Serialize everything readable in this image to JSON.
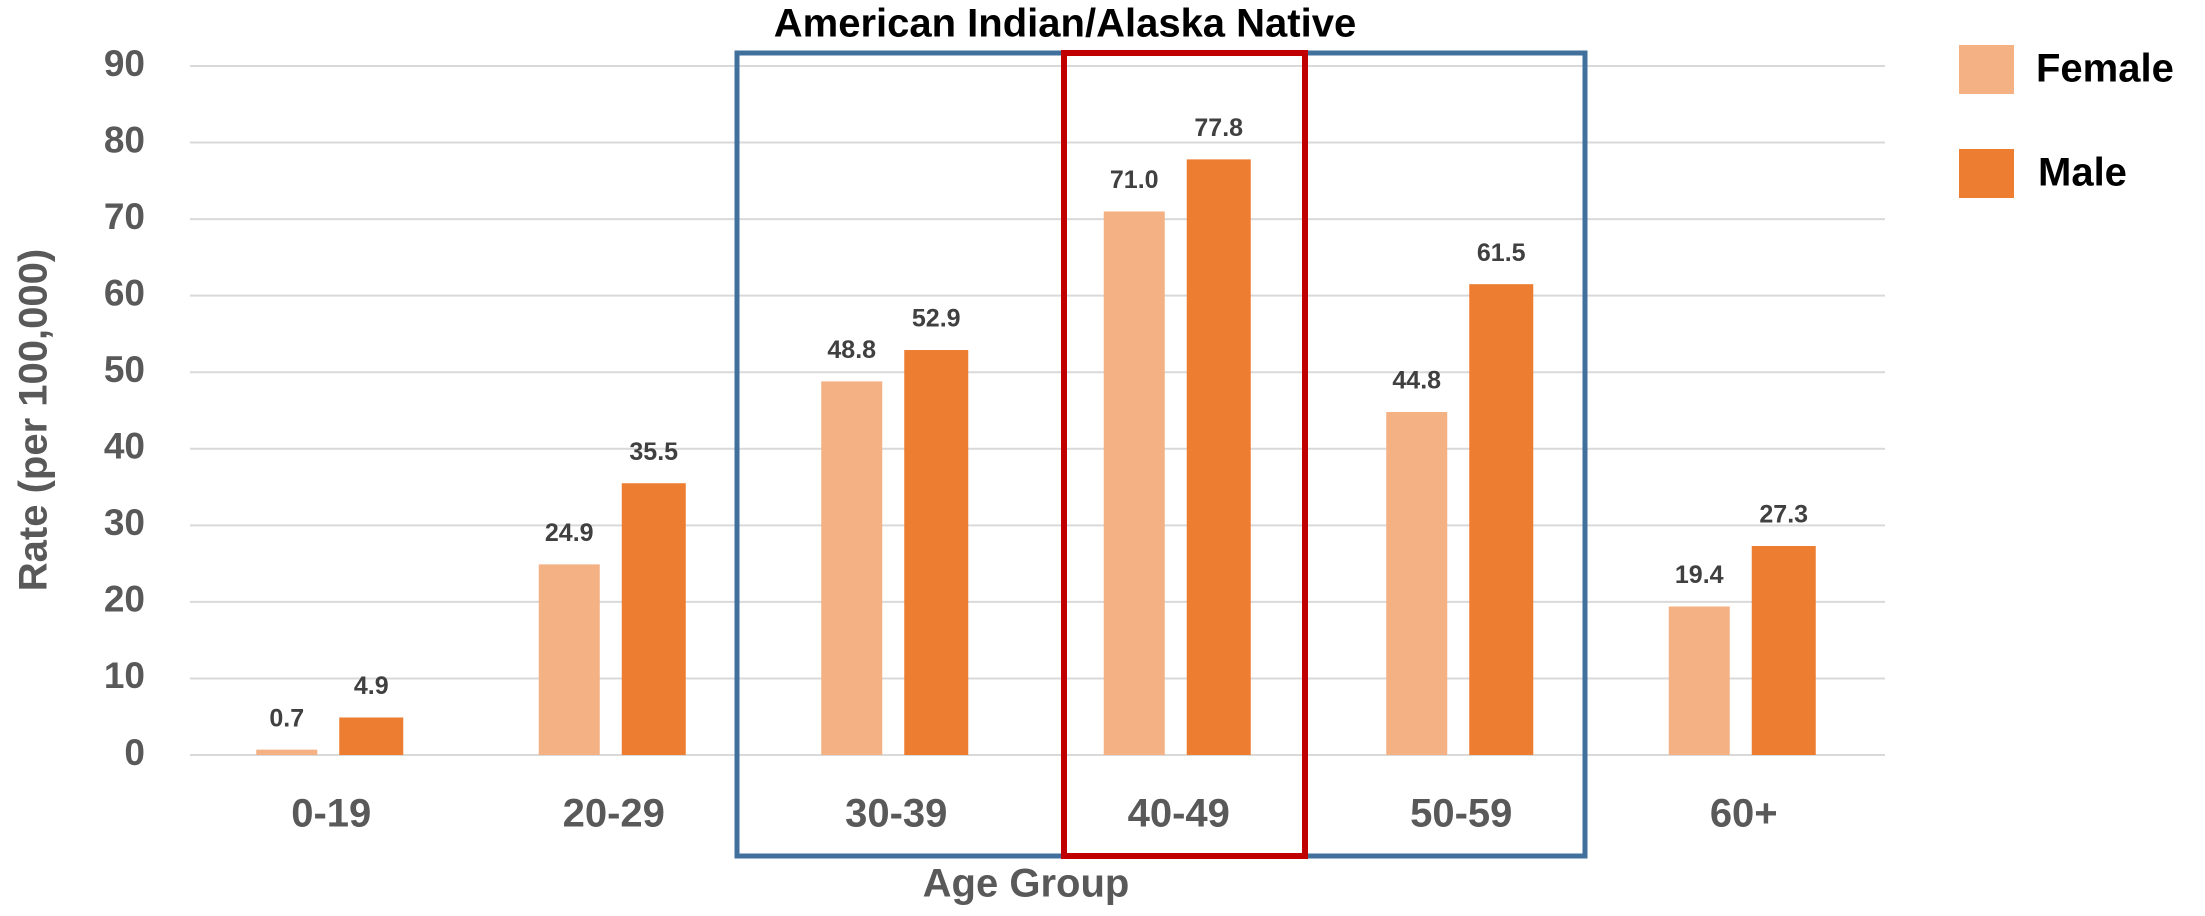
{
  "chart_data": {
    "type": "bar",
    "title": "American Indian/Alaska Native",
    "x_label": "Age Group",
    "y_label": "Rate (per 100,000)",
    "categories": [
      "0-19",
      "20-29",
      "30-39",
      "40-49",
      "50-59",
      "60+"
    ],
    "series": [
      {
        "name": "Female",
        "color": "#f4b183",
        "values": [
          0.7,
          24.9,
          48.8,
          71.0,
          44.8,
          19.4
        ],
        "value_labels": [
          "0.7",
          "24.9",
          "48.8",
          "71.0",
          "44.8",
          "19.4"
        ]
      },
      {
        "name": "Male",
        "color": "#ed7d31",
        "values": [
          4.9,
          35.5,
          52.9,
          77.8,
          61.5,
          27.3
        ],
        "value_labels": [
          "4.9",
          "35.5",
          "52.9",
          "77.8",
          "61.5",
          "27.3"
        ]
      }
    ],
    "ylim": [
      0,
      90
    ],
    "yticks": [
      0,
      10,
      20,
      30,
      40,
      50,
      60,
      70,
      80,
      90
    ],
    "grid": true,
    "legend": "right"
  }
}
